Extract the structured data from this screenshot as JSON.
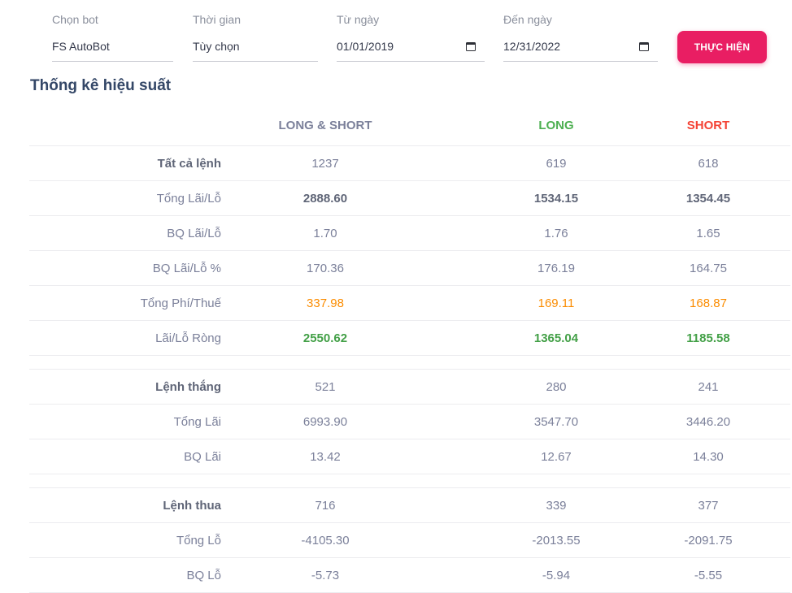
{
  "filters": {
    "bot": {
      "label": "Chọn bot",
      "value": "FS AutoBot"
    },
    "period": {
      "label": "Thời gian",
      "value": "Tùy chọn"
    },
    "from_date": {
      "label": "Từ ngày",
      "value": "01/01/2019"
    },
    "to_date": {
      "label": "Đến ngày",
      "value": "12/31/2022"
    },
    "run_label": "THỰC HIỆN"
  },
  "title": "Thống kê hiệu suất",
  "columns": [
    "LONG & SHORT",
    "LONG",
    "SHORT"
  ],
  "rows": [
    {
      "label": "Tất cả lệnh",
      "values": [
        "1237",
        "619",
        "618"
      ]
    },
    {
      "label": "Tổng Lãi/Lỗ",
      "values": [
        "2888.60",
        "1534.15",
        "1354.45"
      ]
    },
    {
      "label": "BQ Lãi/Lỗ",
      "values": [
        "1.70",
        "1.76",
        "1.65"
      ]
    },
    {
      "label": "BQ Lãi/Lỗ %",
      "values": [
        "170.36",
        "176.19",
        "164.75"
      ]
    },
    {
      "label": "Tổng Phí/Thuế",
      "values": [
        "337.98",
        "169.11",
        "168.87"
      ]
    },
    {
      "label": "Lãi/Lỗ Ròng",
      "values": [
        "2550.62",
        "1365.04",
        "1185.58"
      ]
    },
    {
      "label": "Lệnh thắng",
      "values": [
        "521",
        "280",
        "241"
      ]
    },
    {
      "label": "Tổng Lãi",
      "values": [
        "6993.90",
        "3547.70",
        "3446.20"
      ]
    },
    {
      "label": "BQ Lãi",
      "values": [
        "13.42",
        "12.67",
        "14.30"
      ]
    },
    {
      "label": "Lệnh thua",
      "values": [
        "716",
        "339",
        "377"
      ]
    },
    {
      "label": "Tổng Lỗ",
      "values": [
        "-4105.30",
        "-2013.55",
        "-2091.75"
      ]
    },
    {
      "label": "BQ Lỗ",
      "values": [
        "-5.73",
        "-5.94",
        "-5.55"
      ]
    }
  ],
  "colors": {
    "accent": "#e91e63",
    "long": "#4caf50",
    "short": "#f44335",
    "fees": "#fb8c00",
    "net": "#43a047",
    "title": "#344767"
  },
  "icons": {
    "calendar": "calendar-icon"
  }
}
